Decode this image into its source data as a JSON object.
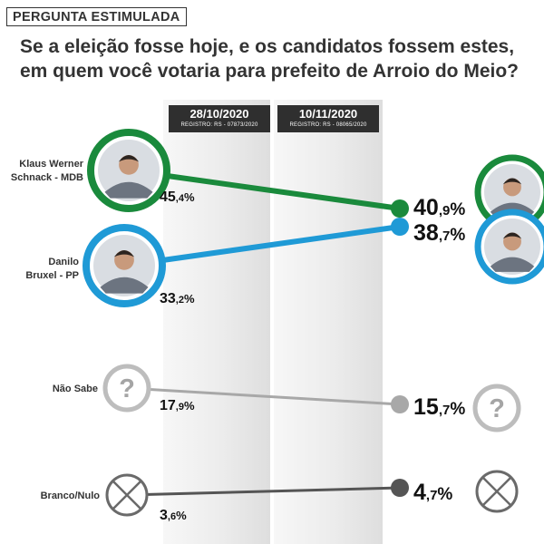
{
  "header": {
    "tag": "PERGUNTA ESTIMULADA",
    "title_line1": "Se a eleição fosse hoje, e os candidatos fossem estes,",
    "title_line2": "em quem você votaria para prefeito de Arroio do Meio?"
  },
  "surveys": [
    {
      "date": "28/10/2020",
      "registro": "REGISTRO: RS - 07873/2020"
    },
    {
      "date": "10/11/2020",
      "registro": "REGISTRO: RS - 08065/2020"
    }
  ],
  "chart_data": {
    "type": "line",
    "title": "Se a eleição fosse hoje, e os candidatos fossem estes, em quem você votaria para prefeito de Arroio do Meio?",
    "x": [
      "28/10/2020",
      "10/11/2020"
    ],
    "series": [
      {
        "name": "Klaus Werner Schnack - MDB",
        "label_lines": [
          "Klaus Werner",
          "Schnack - MDB"
        ],
        "values": [
          45.4,
          40.9
        ],
        "labels": [
          "45,4%",
          "40,9%"
        ],
        "color": "#1a8a3c",
        "icon": "candidate-photo"
      },
      {
        "name": "Danilo Bruxel - PP",
        "label_lines": [
          "Danilo",
          "Bruxel - PP"
        ],
        "values": [
          33.2,
          38.7
        ],
        "labels": [
          "33,2%",
          "38,7%"
        ],
        "color": "#1f9ad6",
        "icon": "candidate-photo"
      },
      {
        "name": "Não Sabe",
        "label_lines": [
          "Não Sabe"
        ],
        "values": [
          17.9,
          15.7
        ],
        "labels": [
          "17,9%",
          "15,7%"
        ],
        "color": "#a8a8a8",
        "icon": "question-mark-icon"
      },
      {
        "name": "Branco/Nulo",
        "label_lines": [
          "Branco/Nulo"
        ],
        "values": [
          3.6,
          4.7
        ],
        "labels": [
          "3,6%",
          "4,7%"
        ],
        "color": "#555555",
        "icon": "x-circle-icon"
      }
    ]
  }
}
